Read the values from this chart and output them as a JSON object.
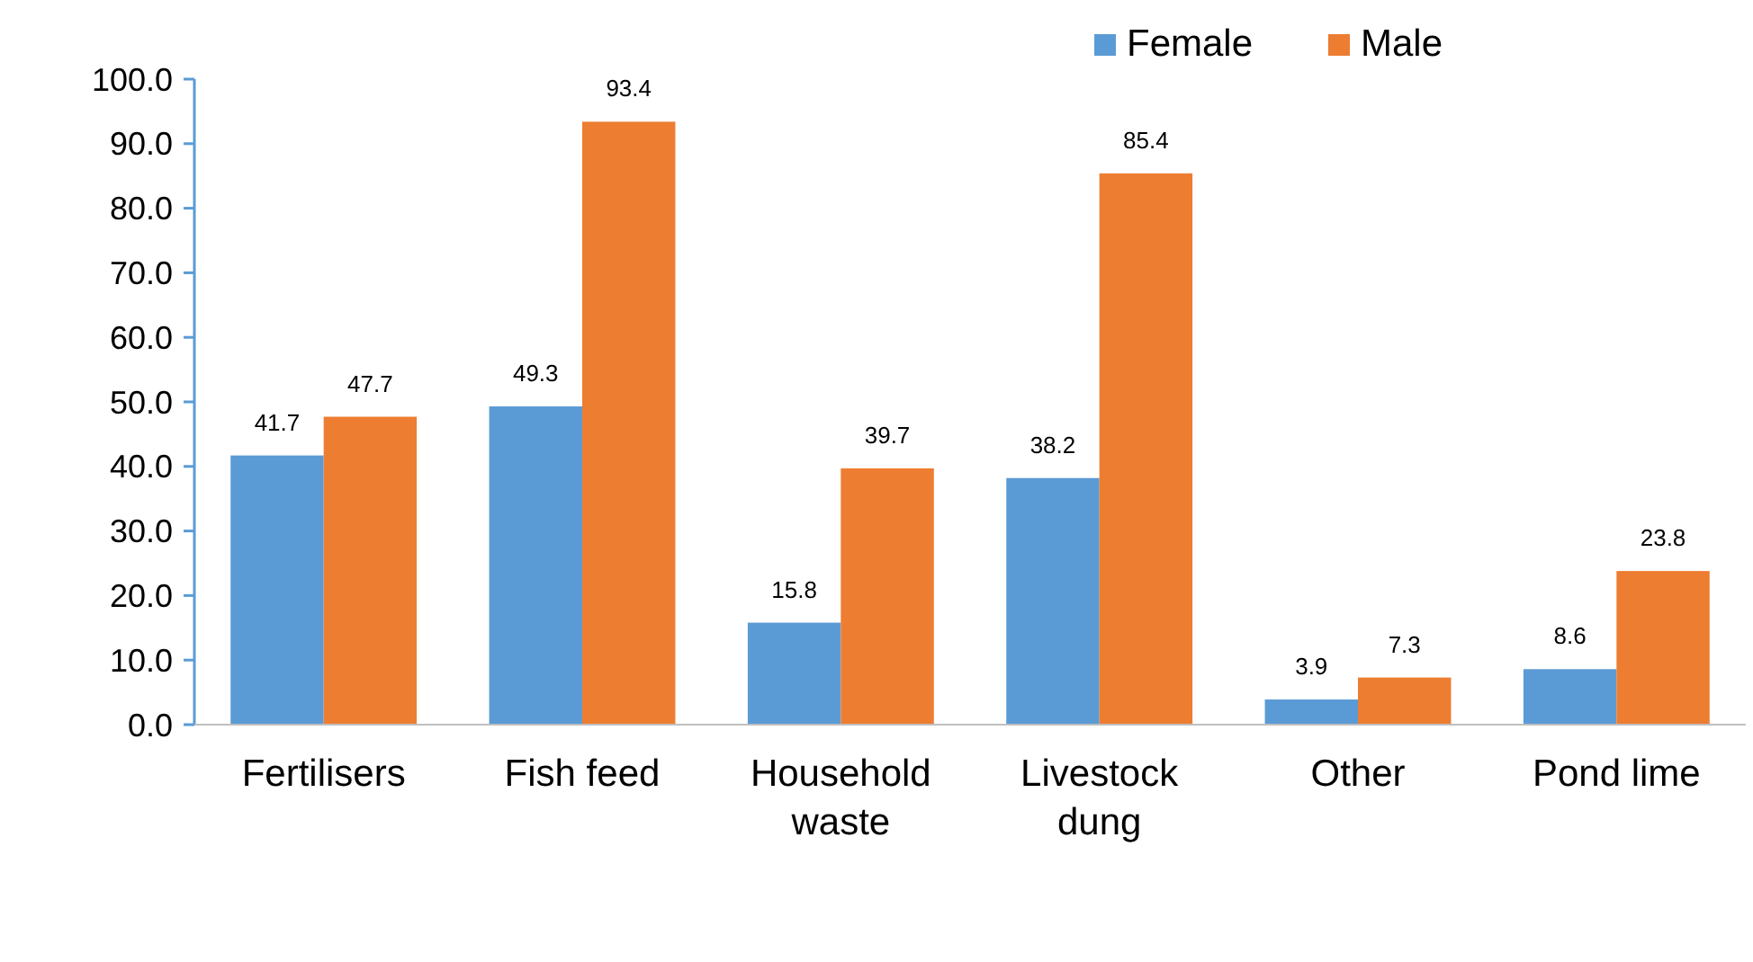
{
  "chart_data": {
    "type": "bar",
    "categories": [
      "Fertilisers",
      "Fish feed",
      "Household waste",
      "Livestock dung",
      "Other",
      "Pond lime"
    ],
    "series": [
      {
        "name": "Female",
        "color": "#5b9bd5",
        "values": [
          41.7,
          49.3,
          15.8,
          38.2,
          3.9,
          8.6
        ]
      },
      {
        "name": "Male",
        "color": "#ed7d31",
        "values": [
          47.7,
          93.4,
          39.7,
          85.4,
          7.3,
          23.8
        ]
      }
    ],
    "ylim": [
      0,
      100
    ],
    "yticks": [
      {
        "value": 0,
        "label": "0.0"
      },
      {
        "value": 10,
        "label": "10.0"
      },
      {
        "value": 20,
        "label": "20.0"
      },
      {
        "value": 30,
        "label": "30.0"
      },
      {
        "value": 40,
        "label": "40.0"
      },
      {
        "value": 50,
        "label": "50.0"
      },
      {
        "value": 60,
        "label": "60.0"
      },
      {
        "value": 70,
        "label": "70.0"
      },
      {
        "value": 80,
        "label": "80.0"
      },
      {
        "value": 90,
        "label": "90.0"
      },
      {
        "value": 100,
        "label": "100.0"
      }
    ],
    "data_labels": true,
    "legend": "top right"
  }
}
